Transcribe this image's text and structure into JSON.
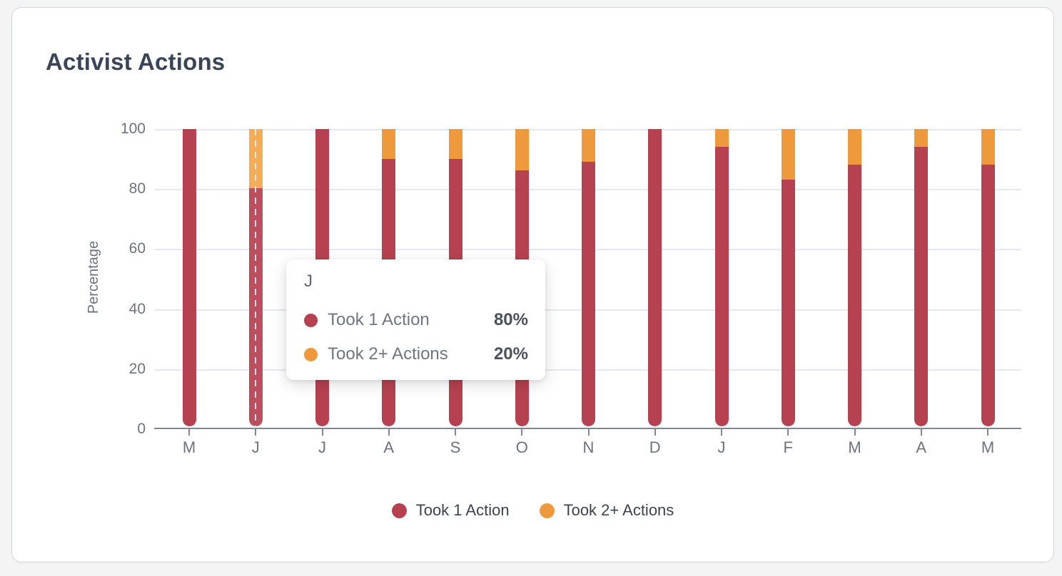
{
  "card": {
    "title": "Activist Actions"
  },
  "chart_data": {
    "type": "bar",
    "stacked": true,
    "title": "Activist Actions",
    "xlabel": "",
    "ylabel": "Percentage",
    "ylim": [
      0,
      100
    ],
    "yticks": [
      0,
      20,
      40,
      60,
      80,
      100
    ],
    "grid": true,
    "legend_position": "bottom",
    "categories": [
      "M",
      "J",
      "J",
      "A",
      "S",
      "O",
      "N",
      "D",
      "J",
      "F",
      "M",
      "A",
      "M"
    ],
    "series": [
      {
        "name": "Took 1 Action",
        "color": "#b64251",
        "values": [
          100,
          80,
          100,
          90,
          90,
          86,
          89,
          100,
          94,
          83,
          88,
          94,
          88
        ]
      },
      {
        "name": "Took 2+ Actions",
        "color": "#ef993d",
        "values": [
          0,
          20,
          0,
          10,
          10,
          14,
          11,
          0,
          6,
          17,
          12,
          6,
          12
        ]
      }
    ],
    "hovered_category_index": 1
  },
  "tooltip": {
    "title": "J",
    "rows": [
      {
        "label": "Took 1 Action",
        "value": "80%",
        "color": "#b64251"
      },
      {
        "label": "Took 2+ Actions",
        "value": "20%",
        "color": "#ef993d"
      }
    ]
  }
}
